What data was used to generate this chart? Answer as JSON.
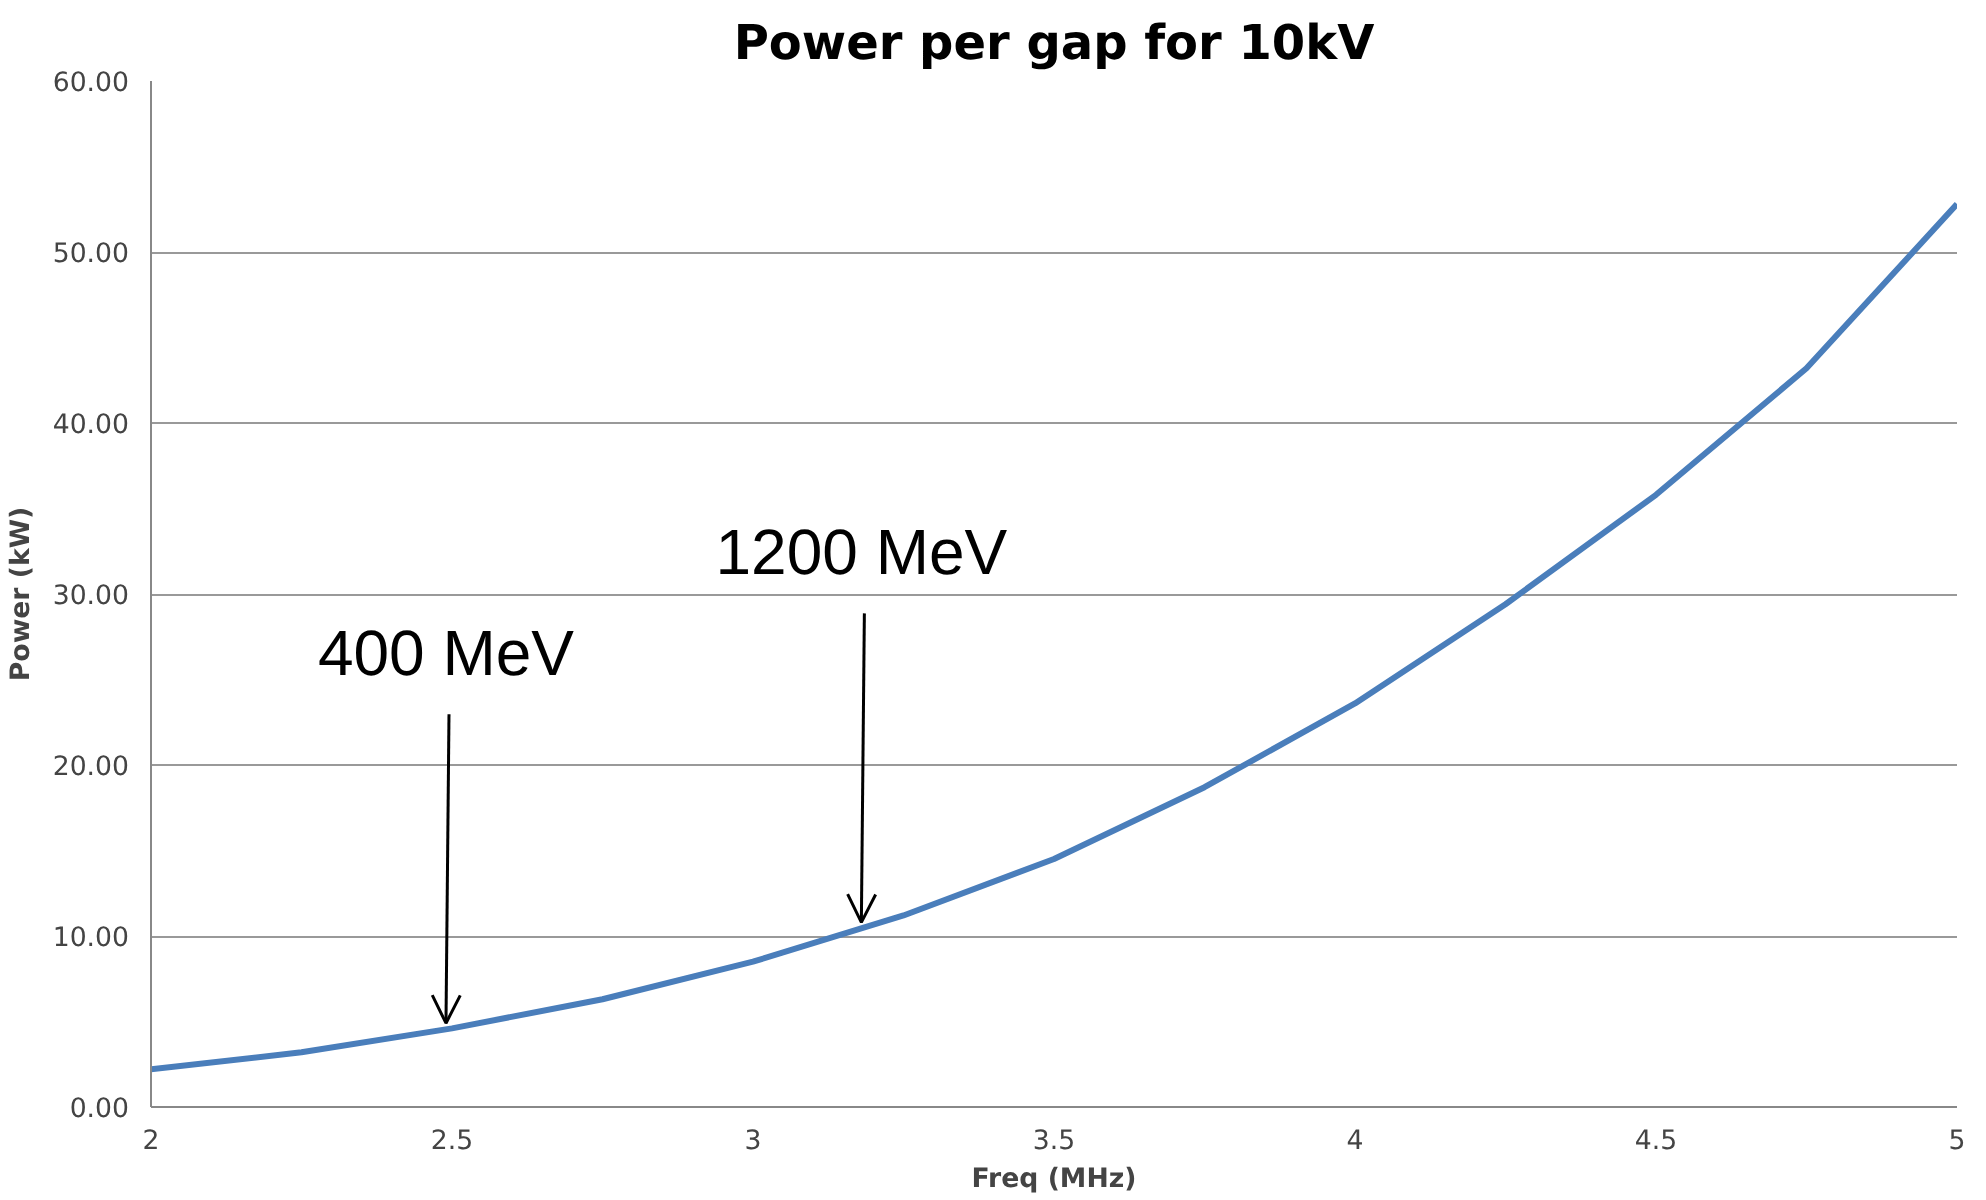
{
  "chart_data": {
    "type": "line",
    "title": "Power per gap for 10kV",
    "xlabel": "Freq (MHz)",
    "ylabel": "Power (kW)",
    "x": [
      2,
      2.25,
      2.5,
      2.75,
      3,
      3.25,
      3.5,
      3.75,
      4,
      4.25,
      4.5,
      4.75,
      5
    ],
    "series": [
      {
        "color": "#4a7ebb",
        "values": [
          2.2,
          3.2,
          4.6,
          6.3,
          8.5,
          11.2,
          14.5,
          18.7,
          23.6,
          29.4,
          35.8,
          43.2,
          52.8
        ]
      }
    ],
    "xlim": [
      2,
      5
    ],
    "xticks": [
      2,
      2.5,
      3,
      3.5,
      4,
      4.5,
      5
    ],
    "ylim": [
      0,
      60
    ],
    "yticks": [
      {
        "value": 0,
        "label": "0.00"
      },
      {
        "value": 10,
        "label": "10.00"
      },
      {
        "value": 20,
        "label": "20.00"
      },
      {
        "value": 30,
        "label": "30.00"
      },
      {
        "value": 40,
        "label": "40.00"
      },
      {
        "value": 50,
        "label": "50.00"
      },
      {
        "value": 60,
        "label": "60.00"
      }
    ],
    "grid": "y",
    "marker": "none",
    "line_style": "solid",
    "annotations": [
      {
        "text": "400 MeV",
        "x": 2.49,
        "y": 4.6
      },
      {
        "text": "1200 MeV",
        "x": 3.18,
        "y": 10.5
      }
    ]
  }
}
